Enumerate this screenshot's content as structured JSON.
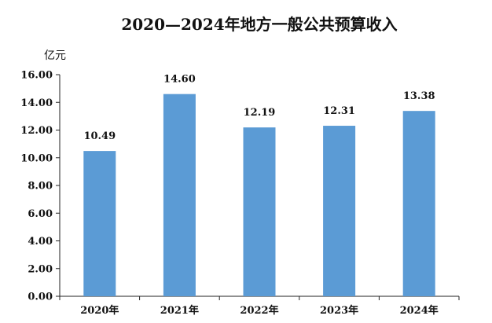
{
  "chart_data": {
    "type": "bar",
    "title": "2020—2024年地方一般公共预算收入",
    "ylabel": "亿元",
    "xlabel": "",
    "categories": [
      "2020年",
      "2021年",
      "2022年",
      "2023年",
      "2024年"
    ],
    "values": [
      10.49,
      14.6,
      12.19,
      12.31,
      13.38
    ],
    "data_labels": [
      "10.49",
      "14.60",
      "12.19",
      "12.31",
      "13.38"
    ],
    "ylim": [
      0,
      16
    ],
    "yticks": [
      "0.00",
      "2.00",
      "4.00",
      "6.00",
      "8.00",
      "10.00",
      "12.00",
      "14.00",
      "16.00"
    ],
    "grid": false,
    "legend": "none",
    "bar_color": "#5b9bd5"
  }
}
